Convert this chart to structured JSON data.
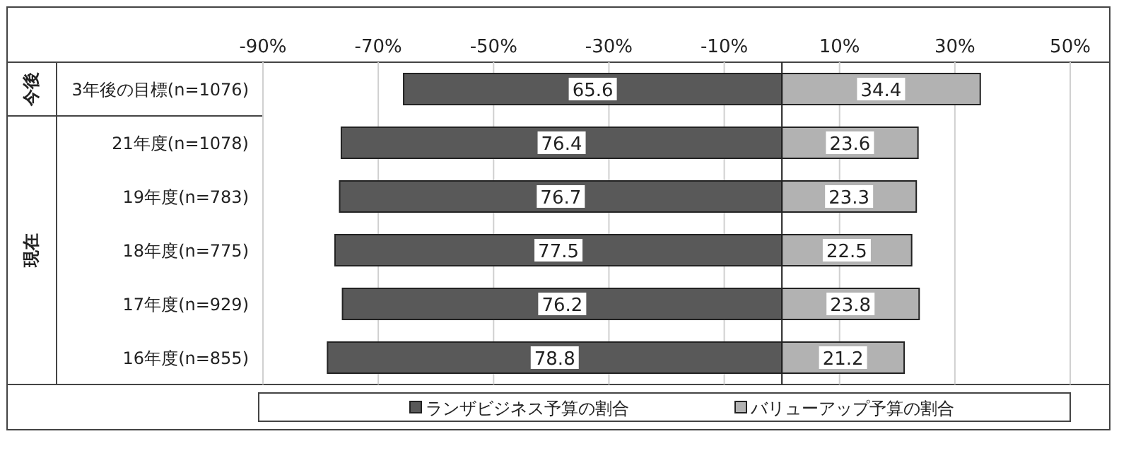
{
  "chart_data": {
    "type": "bar",
    "orientation": "horizontal",
    "categories": [
      "3年後の目標(n=1076)",
      "21年度(n=1078)",
      "19年度(n=783)",
      "18年度(n=775)",
      "17年度(n=929)",
      "16年度(n=855)"
    ],
    "series": [
      {
        "name": "ランザビジネス予算の割合",
        "color": "#595959",
        "values": [
          65.6,
          76.4,
          76.7,
          77.5,
          76.2,
          78.8
        ],
        "base": [
          -65.6,
          -76.4,
          -76.7,
          -77.5,
          -76.2,
          -78.8
        ],
        "value_labels": [
          "65.6",
          "76.4",
          "76.7",
          "77.5",
          "76.2",
          "78.8"
        ]
      },
      {
        "name": "バリューアップ予算の割合",
        "color": "#b2b2b2",
        "values": [
          34.4,
          23.6,
          23.3,
          22.5,
          23.8,
          21.2
        ],
        "value_labels": [
          "34.4",
          "23.6",
          "23.3",
          "22.5",
          "23.8",
          "21.2"
        ]
      }
    ],
    "xlim": [
      -90,
      50
    ],
    "xticks": [
      {
        "value": -90,
        "label": "-90%"
      },
      {
        "value": -70,
        "label": "-70%"
      },
      {
        "value": -50,
        "label": "-50%"
      },
      {
        "value": -30,
        "label": "-30%"
      },
      {
        "value": -10,
        "label": "-10%"
      },
      {
        "value": 10,
        "label": "10%"
      },
      {
        "value": 30,
        "label": "30%"
      },
      {
        "value": 50,
        "label": "50%"
      }
    ],
    "annotations": [
      "今後",
      "現在"
    ],
    "grid": "x",
    "legend": "bottom"
  }
}
